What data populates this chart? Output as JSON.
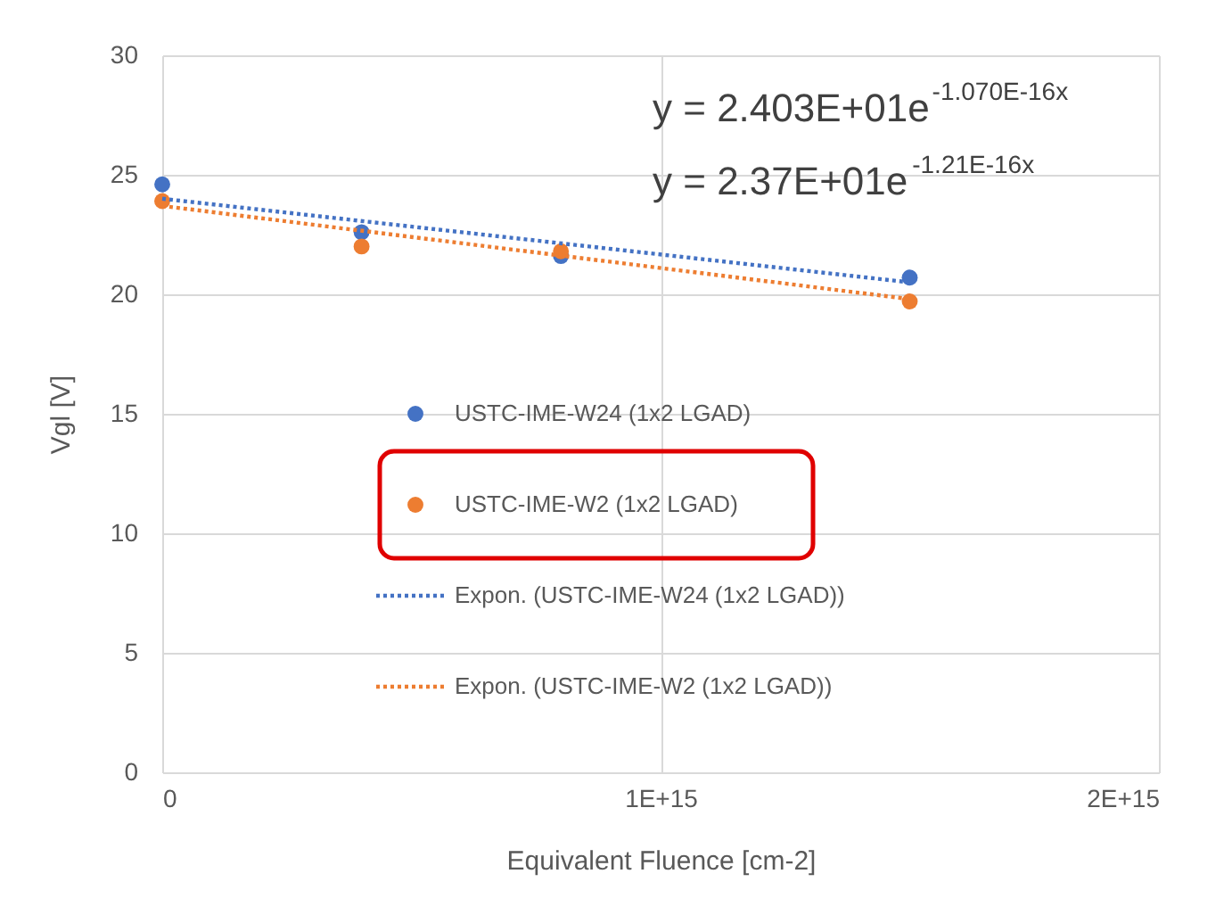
{
  "chart_data": {
    "type": "scatter",
    "xlabel": "Equivalent Fluence [cm-2]",
    "ylabel": "Vgl [V]",
    "xlim": [
      0,
      2000000000000000.0
    ],
    "xticks": [
      0,
      {
        "value": 1000000000000000.0,
        "label": "1E+15"
      },
      {
        "value": 2000000000000000.0,
        "label": "2E+15"
      }
    ],
    "ylim": [
      0,
      30
    ],
    "yticks": [
      0,
      5,
      10,
      15,
      20,
      25,
      30
    ],
    "grid": true,
    "legend": "left",
    "annotations": [
      "y = 2.403E+01e$^{-1.070E-16x}$",
      "y = 2.37E+01e$^{-1.21E-16x}$"
    ],
    "series": [
      {
        "name": "USTC-IME-W24 (1x2 LGAD)",
        "marker": "circle",
        "color": "#4472c4",
        "x": [
          0,
          400000000000000.0,
          800000000000000.0,
          1500000000000000.0
        ],
        "values": [
          24.6,
          22.6,
          21.6,
          20.7
        ]
      },
      {
        "name": "USTC-IME-W2 (1x2 LGAD)",
        "marker": "circle",
        "color": "#ed7d31",
        "x": [
          0,
          400000000000000.0,
          800000000000000.0,
          1500000000000000.0
        ],
        "values": [
          23.9,
          22.0,
          21.8,
          19.7
        ]
      },
      {
        "name": "Expon. (USTC-IME-W24 (1x2 LGAD))",
        "type": "line",
        "line_style": "dotted",
        "color": "#4472c4",
        "x": [
          0,
          1500000000000000.0
        ],
        "values": [
          24.0,
          20.5
        ]
      },
      {
        "name": "Expon. (USTC-IME-W2 (1x2 LGAD))",
        "type": "line",
        "line_style": "dotted",
        "color": "#ed7d31",
        "x": [
          0,
          1500000000000000.0
        ],
        "values": [
          23.7,
          19.8
        ]
      }
    ]
  }
}
